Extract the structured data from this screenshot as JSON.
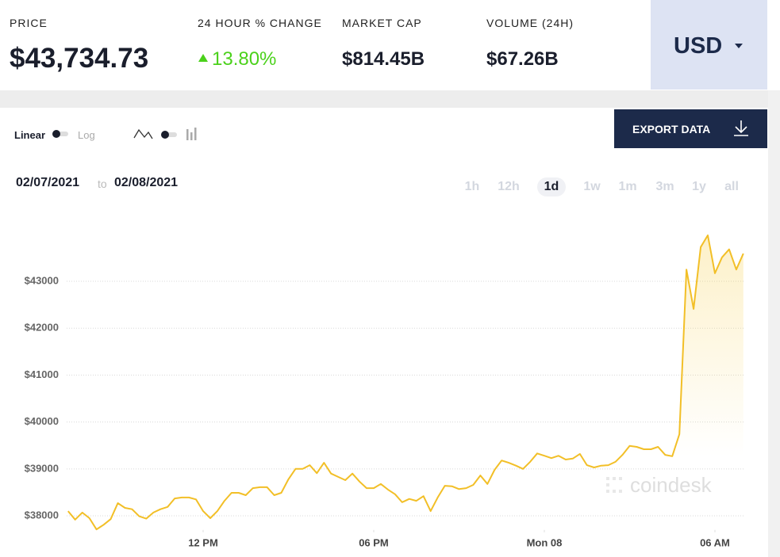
{
  "header": {
    "stats": [
      {
        "label": "PRICE",
        "value": "$43,734.73"
      },
      {
        "label": "24 HOUR % CHANGE",
        "value": "13.80%"
      },
      {
        "label": "MARKET CAP",
        "value": "$814.45B"
      },
      {
        "label": "VOLUME (24H)",
        "value": "$67.26B"
      }
    ],
    "currency": "USD"
  },
  "controls": {
    "linear": "Linear",
    "log": "Log",
    "export": "EXPORT DATA",
    "date_from": "02/07/2021",
    "date_sep": "to",
    "date_to": "02/08/2021",
    "ranges": [
      "1h",
      "12h",
      "1d",
      "1w",
      "1m",
      "3m",
      "1y",
      "all"
    ],
    "active_range": 2
  },
  "chart_data": {
    "type": "line",
    "watermark": "coindesk",
    "x": [
      7.25,
      7.5,
      7.75,
      8,
      8.25,
      8.5,
      8.75,
      9,
      9.25,
      9.5,
      9.75,
      10,
      10.25,
      10.5,
      10.75,
      11,
      11.25,
      11.5,
      11.75,
      12,
      12.25,
      12.5,
      12.75,
      13,
      13.25,
      13.5,
      13.75,
      14,
      14.25,
      14.5,
      14.75,
      15,
      15.25,
      15.5,
      15.75,
      16,
      16.25,
      16.5,
      16.75,
      17,
      17.25,
      17.5,
      17.75,
      18,
      18.25,
      18.5,
      18.75,
      19,
      19.25,
      19.5,
      19.75,
      20,
      20.25,
      20.5,
      20.75,
      21,
      21.25,
      21.5,
      21.75,
      22,
      22.25,
      22.5,
      22.75,
      23,
      23.25,
      23.5,
      23.75,
      24,
      24.25,
      24.5,
      24.75,
      25,
      25.25,
      25.5,
      25.75,
      26,
      26.25,
      26.5,
      26.75,
      27,
      27.25,
      27.5,
      27.75,
      28,
      28.25,
      28.5,
      28.75,
      29,
      29.25,
      29.5,
      29.75,
      30,
      30.25,
      30.5,
      30.75,
      31
    ],
    "series": [
      {
        "color": "#f2bf27",
        "values": [
          38100,
          37920,
          38070,
          37950,
          37710,
          37810,
          37930,
          38270,
          38170,
          38140,
          37990,
          37940,
          38070,
          38140,
          38190,
          38370,
          38390,
          38390,
          38350,
          38100,
          37950,
          38100,
          38320,
          38490,
          38490,
          38440,
          38590,
          38610,
          38610,
          38440,
          38490,
          38780,
          39000,
          39000,
          39080,
          38910,
          39130,
          38900,
          38830,
          38760,
          38900,
          38730,
          38590,
          38590,
          38680,
          38560,
          38460,
          38290,
          38360,
          38320,
          38420,
          38100,
          38390,
          38640,
          38630,
          38570,
          38590,
          38660,
          38860,
          38680,
          38980,
          39180,
          39130,
          39070,
          39000,
          39150,
          39330,
          39280,
          39230,
          39280,
          39200,
          39220,
          39320,
          39080,
          39030,
          39070,
          39080,
          39150,
          39300,
          39490,
          39470,
          39420,
          39420,
          39470,
          39300,
          39270,
          39740,
          43250,
          42410,
          43730,
          43980,
          43170,
          43510,
          43680,
          43250,
          43590
        ]
      }
    ],
    "xlim": [
      7.2,
      31.05
    ],
    "xticks": [
      {
        "value": 12,
        "label": "12 PM"
      },
      {
        "value": 18,
        "label": "06 PM"
      },
      {
        "value": 24,
        "label": "Mon 08"
      },
      {
        "value": 30,
        "label": "06 AM"
      }
    ],
    "ylim": [
      37700,
      44800
    ],
    "yticks": [
      {
        "value": 38000,
        "label": "$38000"
      },
      {
        "value": 39000,
        "label": "$39000"
      },
      {
        "value": 40000,
        "label": "$40000"
      },
      {
        "value": 41000,
        "label": "$41000"
      },
      {
        "value": 42000,
        "label": "$42000"
      },
      {
        "value": 43000,
        "label": "$43000"
      }
    ],
    "grid": true
  }
}
